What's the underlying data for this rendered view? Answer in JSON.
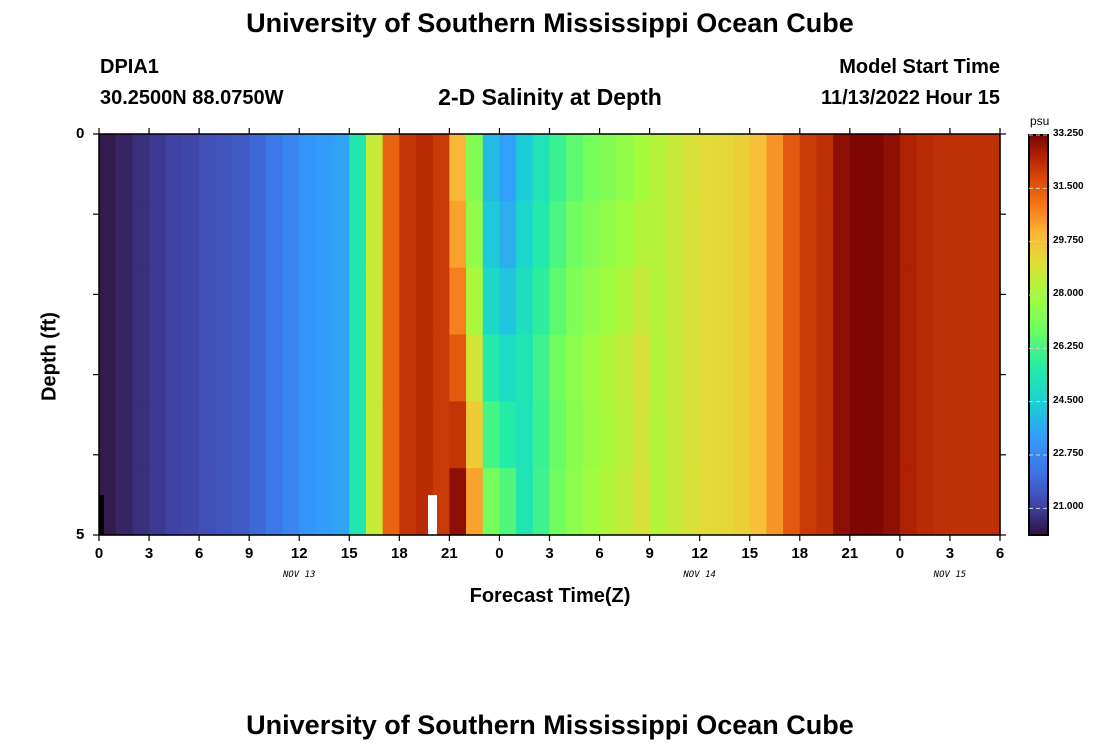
{
  "page": {
    "title_top": "University of Southern Mississippi Ocean Cube",
    "title_bottom": "University of Southern Mississippi Ocean Cube",
    "station_id": "DPIA1",
    "station_coords": "30.2500N  88.0750W",
    "plot_title": "2-D Salinity at Depth",
    "model_start_label": "Model Start Time",
    "model_start_value": "11/13/2022 Hour 15"
  },
  "chart_data": {
    "type": "heatmap",
    "title": "2-D Salinity at Depth",
    "xlabel": "Forecast Time(Z)",
    "ylabel": "Depth (ft)",
    "x_hours_range": [
      0,
      54
    ],
    "y_range": [
      0,
      5
    ],
    "y_ticks": [
      "0",
      "5"
    ],
    "x_tick_labels": [
      "0",
      "3",
      "6",
      "9",
      "12",
      "15",
      "18",
      "21",
      "0",
      "3",
      "6",
      "9",
      "12",
      "15",
      "18",
      "21",
      "0",
      "3",
      "6"
    ],
    "day_labels": [
      {
        "label": "NOV 13",
        "hour": 12
      },
      {
        "label": "NOV 14",
        "hour": 36
      },
      {
        "label": "NOV 15",
        "hour": 51
      }
    ],
    "colorbar": {
      "unit": "psu",
      "min": 20.125,
      "max": 33.25,
      "tick_values": [
        21.0,
        22.75,
        24.5,
        26.25,
        28.0,
        29.75,
        31.5,
        33.25
      ],
      "tick_labels": [
        "21.000",
        "22.750",
        "24.500",
        "26.250",
        "28.000",
        "29.750",
        "31.500",
        "33.250"
      ]
    },
    "surface_salinity": [
      [
        0,
        20.3
      ],
      [
        1,
        20.5
      ],
      [
        2,
        20.7
      ],
      [
        3,
        20.9
      ],
      [
        4,
        21.1
      ],
      [
        5,
        21.2
      ],
      [
        6,
        21.4
      ],
      [
        7,
        21.5
      ],
      [
        8,
        21.6
      ],
      [
        9,
        21.9
      ],
      [
        10,
        22.3
      ],
      [
        11,
        22.7
      ],
      [
        12,
        23.1
      ],
      [
        13,
        23.3
      ],
      [
        14,
        23.5
      ],
      [
        15,
        25.4
      ],
      [
        16,
        28.6
      ],
      [
        17,
        31.3
      ],
      [
        18,
        32.2
      ],
      [
        19,
        32.4
      ],
      [
        20,
        32.1
      ],
      [
        21,
        30.0
      ],
      [
        22,
        27.3
      ],
      [
        23,
        24.0
      ],
      [
        24,
        23.4
      ],
      [
        25,
        24.4
      ],
      [
        26,
        25.2
      ],
      [
        27,
        26.0
      ],
      [
        28,
        26.6
      ],
      [
        29,
        27.0
      ],
      [
        30,
        27.3
      ],
      [
        31,
        27.6
      ],
      [
        32,
        28.0
      ],
      [
        33,
        28.3
      ],
      [
        34,
        28.6
      ],
      [
        35,
        28.9
      ],
      [
        36,
        29.1
      ],
      [
        37,
        29.2
      ],
      [
        38,
        29.4
      ],
      [
        39,
        29.8
      ],
      [
        40,
        30.5
      ],
      [
        41,
        31.5
      ],
      [
        42,
        32.1
      ],
      [
        43,
        32.3
      ],
      [
        44,
        33.0
      ],
      [
        45,
        33.2
      ],
      [
        46,
        33.2
      ],
      [
        47,
        33.0
      ],
      [
        48,
        32.6
      ],
      [
        49,
        32.4
      ],
      [
        50,
        32.3
      ],
      [
        51,
        32.3
      ],
      [
        52,
        32.3
      ],
      [
        53,
        32.3
      ],
      [
        54,
        32.3
      ]
    ],
    "depth_adjustments": [
      {
        "hours": [
          21,
          25
        ],
        "depth_delta": [
          0,
          0.3,
          0.8,
          1.5,
          2.2,
          3.0
        ]
      },
      {
        "hours": [
          25,
          33
        ],
        "depth_delta": [
          0,
          0.3,
          0.6,
          0.9,
          0.8,
          0.9
        ]
      }
    ]
  }
}
